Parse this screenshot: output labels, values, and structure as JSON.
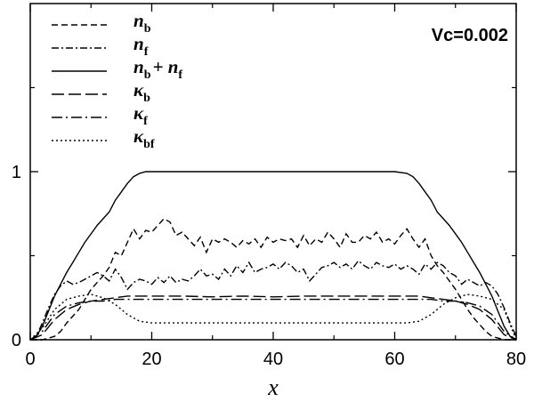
{
  "chart_data": {
    "type": "line",
    "title": "",
    "annotation": "Vc=0.002",
    "xlabel": "x",
    "ylabel": "",
    "xlim": [
      0,
      80
    ],
    "ylim": [
      0,
      2
    ],
    "xticks": [
      0,
      20,
      40,
      60,
      80
    ],
    "xtick_labels": [
      "0",
      "20",
      "40",
      "60",
      "80"
    ],
    "yticks": [
      0,
      1
    ],
    "ytick_labels": [
      "0",
      "1"
    ],
    "legend_position": "top-left",
    "grid": false,
    "series": [
      {
        "name": "n_b",
        "label_main": "n",
        "label_sub": "b",
        "label_extra": "",
        "dash": "7,4",
        "x": [
          0,
          2,
          3,
          4,
          5,
          6,
          7,
          8,
          9,
          10,
          11,
          12,
          13,
          14,
          15,
          16,
          17,
          18,
          19,
          20,
          21,
          22,
          23,
          24,
          25,
          26,
          27,
          28,
          29,
          30,
          31,
          32,
          33,
          34,
          35,
          36,
          37,
          38,
          39,
          40,
          41,
          42,
          43,
          44,
          45,
          46,
          47,
          48,
          49,
          50,
          51,
          52,
          53,
          54,
          55,
          56,
          57,
          58,
          59,
          60,
          61,
          62,
          63,
          64,
          65,
          66,
          67,
          68,
          69,
          70,
          71,
          72,
          73,
          74,
          75,
          76,
          77,
          78,
          80
        ],
        "y": [
          0,
          0,
          0.01,
          0.02,
          0.05,
          0.1,
          0.14,
          0.18,
          0.24,
          0.3,
          0.34,
          0.38,
          0.43,
          0.52,
          0.5,
          0.58,
          0.66,
          0.6,
          0.65,
          0.64,
          0.68,
          0.72,
          0.7,
          0.62,
          0.64,
          0.6,
          0.56,
          0.61,
          0.52,
          0.6,
          0.58,
          0.6,
          0.58,
          0.55,
          0.59,
          0.57,
          0.6,
          0.55,
          0.61,
          0.58,
          0.6,
          0.59,
          0.6,
          0.55,
          0.62,
          0.56,
          0.6,
          0.58,
          0.64,
          0.6,
          0.55,
          0.63,
          0.58,
          0.58,
          0.62,
          0.6,
          0.64,
          0.58,
          0.6,
          0.57,
          0.62,
          0.66,
          0.6,
          0.55,
          0.6,
          0.5,
          0.44,
          0.4,
          0.35,
          0.3,
          0.24,
          0.18,
          0.13,
          0.09,
          0.05,
          0.02,
          0.01,
          0,
          0
        ]
      },
      {
        "name": "n_f",
        "label_main": "n",
        "label_sub": "f",
        "label_extra": "",
        "dash": "8,3,2,3",
        "x": [
          0,
          1,
          2,
          3,
          4,
          5,
          6,
          7,
          8,
          9,
          10,
          11,
          12,
          13,
          14,
          15,
          16,
          17,
          18,
          19,
          20,
          21,
          22,
          23,
          24,
          25,
          26,
          27,
          28,
          29,
          30,
          31,
          32,
          33,
          34,
          35,
          36,
          37,
          38,
          39,
          40,
          41,
          42,
          43,
          44,
          45,
          46,
          47,
          48,
          49,
          50,
          51,
          52,
          53,
          54,
          55,
          56,
          57,
          58,
          59,
          60,
          61,
          62,
          63,
          64,
          65,
          66,
          67,
          68,
          69,
          70,
          71,
          72,
          73,
          74,
          75,
          76,
          77,
          78,
          79,
          80
        ],
        "y": [
          0,
          0.02,
          0.1,
          0.19,
          0.27,
          0.32,
          0.35,
          0.33,
          0.34,
          0.36,
          0.38,
          0.4,
          0.38,
          0.35,
          0.42,
          0.37,
          0.3,
          0.34,
          0.36,
          0.35,
          0.33,
          0.37,
          0.34,
          0.38,
          0.34,
          0.36,
          0.35,
          0.38,
          0.42,
          0.38,
          0.39,
          0.36,
          0.42,
          0.38,
          0.44,
          0.4,
          0.46,
          0.4,
          0.42,
          0.43,
          0.45,
          0.42,
          0.46,
          0.44,
          0.4,
          0.42,
          0.35,
          0.39,
          0.43,
          0.44,
          0.46,
          0.43,
          0.45,
          0.42,
          0.47,
          0.44,
          0.42,
          0.46,
          0.44,
          0.43,
          0.45,
          0.42,
          0.44,
          0.42,
          0.39,
          0.45,
          0.42,
          0.46,
          0.44,
          0.4,
          0.38,
          0.33,
          0.36,
          0.34,
          0.32,
          0.34,
          0.32,
          0.27,
          0.19,
          0.1,
          0.02
        ]
      },
      {
        "name": "n_b + n_f",
        "label_main": "n",
        "label_sub": "b",
        "label_extra": "+ n",
        "label_extra_sub": "f",
        "dash": "",
        "x": [
          0,
          1,
          2,
          3,
          4,
          5,
          6,
          7,
          8,
          9,
          10,
          11,
          12,
          13,
          14,
          15,
          16,
          17,
          18,
          19,
          20,
          22,
          25,
          30,
          35,
          40,
          45,
          50,
          55,
          60,
          62,
          63,
          64,
          65,
          66,
          67,
          68,
          69,
          70,
          71,
          72,
          73,
          74,
          75,
          76,
          77,
          78,
          79,
          80
        ],
        "y": [
          0,
          0.02,
          0.08,
          0.17,
          0.26,
          0.33,
          0.4,
          0.46,
          0.52,
          0.58,
          0.63,
          0.68,
          0.72,
          0.76,
          0.83,
          0.88,
          0.93,
          0.97,
          0.99,
          1.0,
          1.0,
          1.0,
          1.0,
          1.0,
          1.0,
          1.0,
          1.0,
          1.0,
          1.0,
          1.0,
          0.99,
          0.97,
          0.93,
          0.88,
          0.83,
          0.76,
          0.72,
          0.68,
          0.63,
          0.58,
          0.52,
          0.46,
          0.4,
          0.33,
          0.26,
          0.17,
          0.08,
          0.02,
          0
        ]
      },
      {
        "name": "κ_b",
        "label_main": "κ",
        "label_sub": "b",
        "label_extra": "",
        "dash": "14,5",
        "x": [
          0,
          2,
          4,
          6,
          8,
          10,
          12,
          14,
          16,
          18,
          20,
          25,
          30,
          35,
          40,
          45,
          50,
          55,
          60,
          62,
          64,
          66,
          68,
          70,
          72,
          74,
          76,
          78,
          80
        ],
        "y": [
          0,
          0.03,
          0.12,
          0.18,
          0.21,
          0.23,
          0.24,
          0.25,
          0.26,
          0.26,
          0.26,
          0.26,
          0.255,
          0.26,
          0.255,
          0.26,
          0.26,
          0.26,
          0.26,
          0.26,
          0.26,
          0.25,
          0.24,
          0.23,
          0.21,
          0.18,
          0.12,
          0.03,
          0
        ]
      },
      {
        "name": "κ_f",
        "label_main": "κ",
        "label_sub": "f",
        "label_extra": "",
        "dash": "12,4,2,4",
        "x": [
          0,
          2,
          4,
          6,
          8,
          10,
          12,
          14,
          16,
          18,
          20,
          25,
          30,
          35,
          40,
          45,
          50,
          55,
          60,
          62,
          64,
          66,
          68,
          70,
          72,
          74,
          76,
          78,
          80
        ],
        "y": [
          0,
          0.05,
          0.15,
          0.2,
          0.22,
          0.23,
          0.23,
          0.24,
          0.24,
          0.24,
          0.24,
          0.24,
          0.24,
          0.24,
          0.24,
          0.24,
          0.24,
          0.24,
          0.24,
          0.24,
          0.24,
          0.24,
          0.23,
          0.23,
          0.22,
          0.2,
          0.15,
          0.05,
          0
        ]
      },
      {
        "name": "κ_bf",
        "label_main": "κ",
        "label_sub": "bf",
        "label_extra": "",
        "dash": "2,3",
        "x": [
          0,
          2,
          4,
          6,
          8,
          10,
          12,
          14,
          16,
          18,
          20,
          25,
          30,
          40,
          50,
          55,
          60,
          62,
          64,
          66,
          68,
          70,
          72,
          74,
          76,
          78,
          80
        ],
        "y": [
          0,
          0.07,
          0.18,
          0.24,
          0.26,
          0.27,
          0.25,
          0.21,
          0.15,
          0.11,
          0.1,
          0.1,
          0.1,
          0.1,
          0.1,
          0.1,
          0.1,
          0.1,
          0.11,
          0.15,
          0.21,
          0.25,
          0.27,
          0.26,
          0.24,
          0.18,
          0
        ]
      }
    ]
  }
}
